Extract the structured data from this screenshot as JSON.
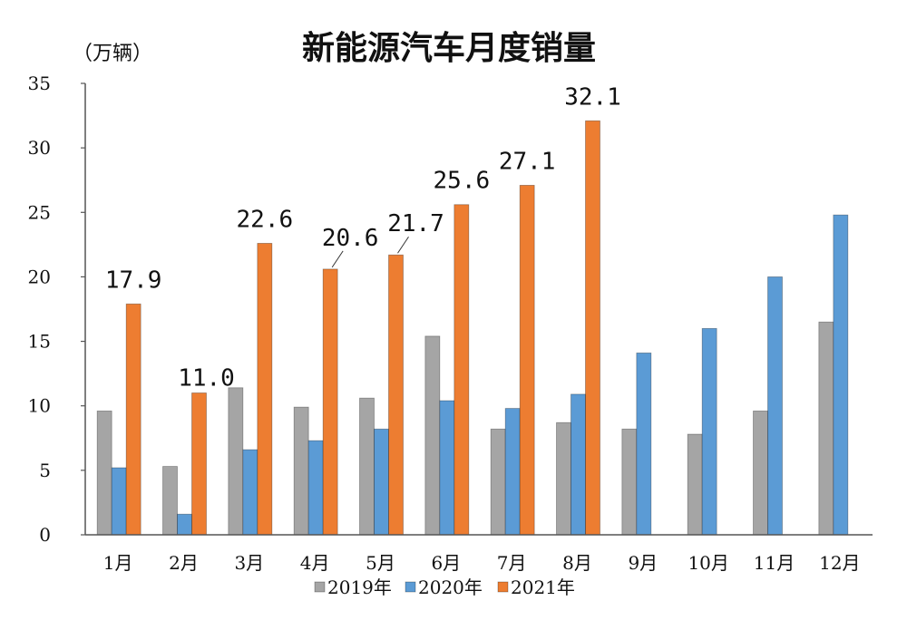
{
  "chart_data": {
    "type": "bar",
    "title": "新能源汽车月度销量",
    "ylabel": "（万辆）",
    "xlabel": "",
    "ylim": [
      0,
      35
    ],
    "yticks": [
      0,
      5,
      10,
      15,
      20,
      25,
      30,
      35
    ],
    "grid": false,
    "legend_position": "bottom",
    "categories": [
      "1月",
      "2月",
      "3月",
      "4月",
      "5月",
      "6月",
      "7月",
      "8月",
      "9月",
      "10月",
      "11月",
      "12月"
    ],
    "series": [
      {
        "name": "2019年",
        "color": "#a5a5a5",
        "values": [
          9.6,
          5.3,
          11.4,
          9.9,
          10.6,
          15.4,
          8.2,
          8.7,
          8.2,
          7.8,
          9.6,
          16.5
        ]
      },
      {
        "name": "2020年",
        "color": "#5b9bd5",
        "values": [
          5.2,
          1.6,
          6.6,
          7.3,
          8.2,
          10.4,
          9.8,
          10.9,
          14.1,
          16.0,
          20.0,
          24.8
        ]
      },
      {
        "name": "2021年",
        "color": "#ed7d31",
        "values": [
          17.9,
          11.0,
          22.6,
          20.6,
          21.7,
          25.6,
          27.1,
          32.1,
          null,
          null,
          null,
          null
        ]
      }
    ],
    "data_labels": [
      "17.9",
      "11.0",
      "22.6",
      "20.6",
      "21.7",
      "25.6",
      "27.1",
      "32.1"
    ]
  }
}
